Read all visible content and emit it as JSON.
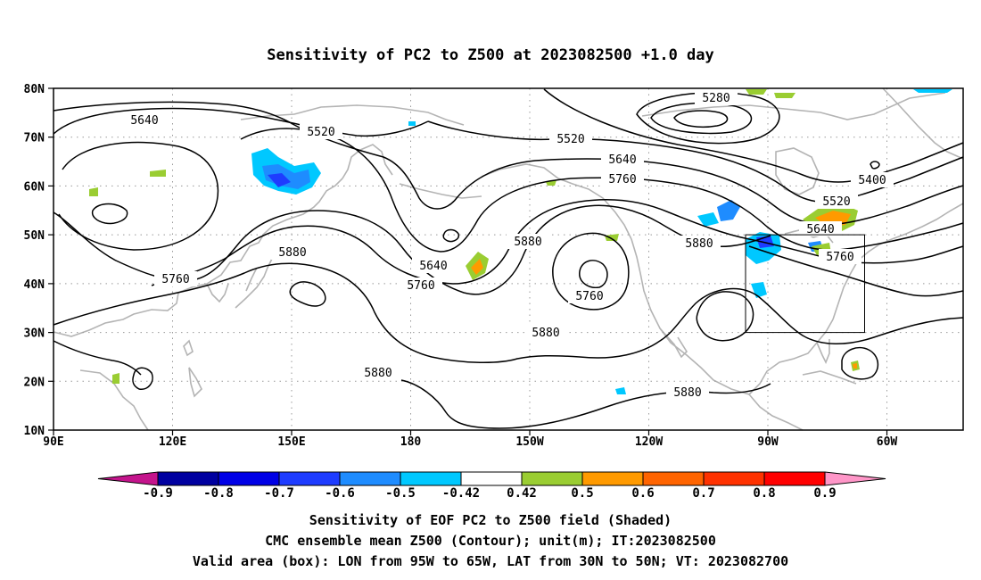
{
  "title": "Sensitivity of PC2 to Z500 at 2023082500 +1.0 day",
  "map": {
    "lat_ticks": [
      "80N",
      "70N",
      "60N",
      "50N",
      "40N",
      "30N",
      "20N",
      "10N"
    ],
    "lon_ticks": [
      "90E",
      "120E",
      "150E",
      "180",
      "150W",
      "120W",
      "90W",
      "60W"
    ],
    "grid": true,
    "contour_labels": [
      "5640",
      "5520",
      "5520",
      "5280",
      "5400",
      "5640",
      "5760",
      "5520",
      "5640",
      "5760",
      "5880",
      "5880",
      "5760",
      "5640",
      "5760",
      "5880",
      "5760",
      "5880",
      "5880",
      "5880"
    ],
    "valid_box": {
      "lon_range": [
        "95W",
        "65W"
      ],
      "lat_range": [
        "30N",
        "50N"
      ]
    },
    "colors": {
      "contour": "#000000",
      "coast": "#b4b4b4",
      "grid": "#999999",
      "box": "#000000"
    }
  },
  "colorbar": {
    "tick_labels": [
      "-0.9",
      "-0.8",
      "-0.7",
      "-0.6",
      "-0.5",
      "-0.42",
      "0.42",
      "0.5",
      "0.6",
      "0.7",
      "0.8",
      "0.9"
    ],
    "segments": [
      {
        "range": "< -0.9",
        "color": "#c4148c"
      },
      {
        "range": "-0.9 to -0.8",
        "color": "#0000a0"
      },
      {
        "range": "-0.8 to -0.7",
        "color": "#0000e6"
      },
      {
        "range": "-0.7 to -0.6",
        "color": "#1e3cff"
      },
      {
        "range": "-0.6 to -0.5",
        "color": "#1e8cff"
      },
      {
        "range": "-0.5 to -0.42",
        "color": "#00c8ff"
      },
      {
        "range": "-0.42 to 0.42",
        "color": "#ffffff"
      },
      {
        "range": "0.42 to 0.5",
        "color": "#9acd32"
      },
      {
        "range": "0.5 to 0.6",
        "color": "#ff9a00"
      },
      {
        "range": "0.6 to 0.7",
        "color": "#ff6400"
      },
      {
        "range": "0.7 to 0.8",
        "color": "#ff3200"
      },
      {
        "range": "0.8 to 0.9",
        "color": "#ff0000"
      },
      {
        "range": "> 0.9",
        "color": "#ff96c8"
      }
    ]
  },
  "footer": {
    "line1": "Sensitivity of EOF PC2 to Z500 field (Shaded)",
    "line2": "CMC ensemble mean Z500 (Contour); unit(m); IT:2023082500",
    "line3": "Valid area (box): LON from 95W to 65W, LAT from 30N to 50N; VT: 2023082700"
  }
}
